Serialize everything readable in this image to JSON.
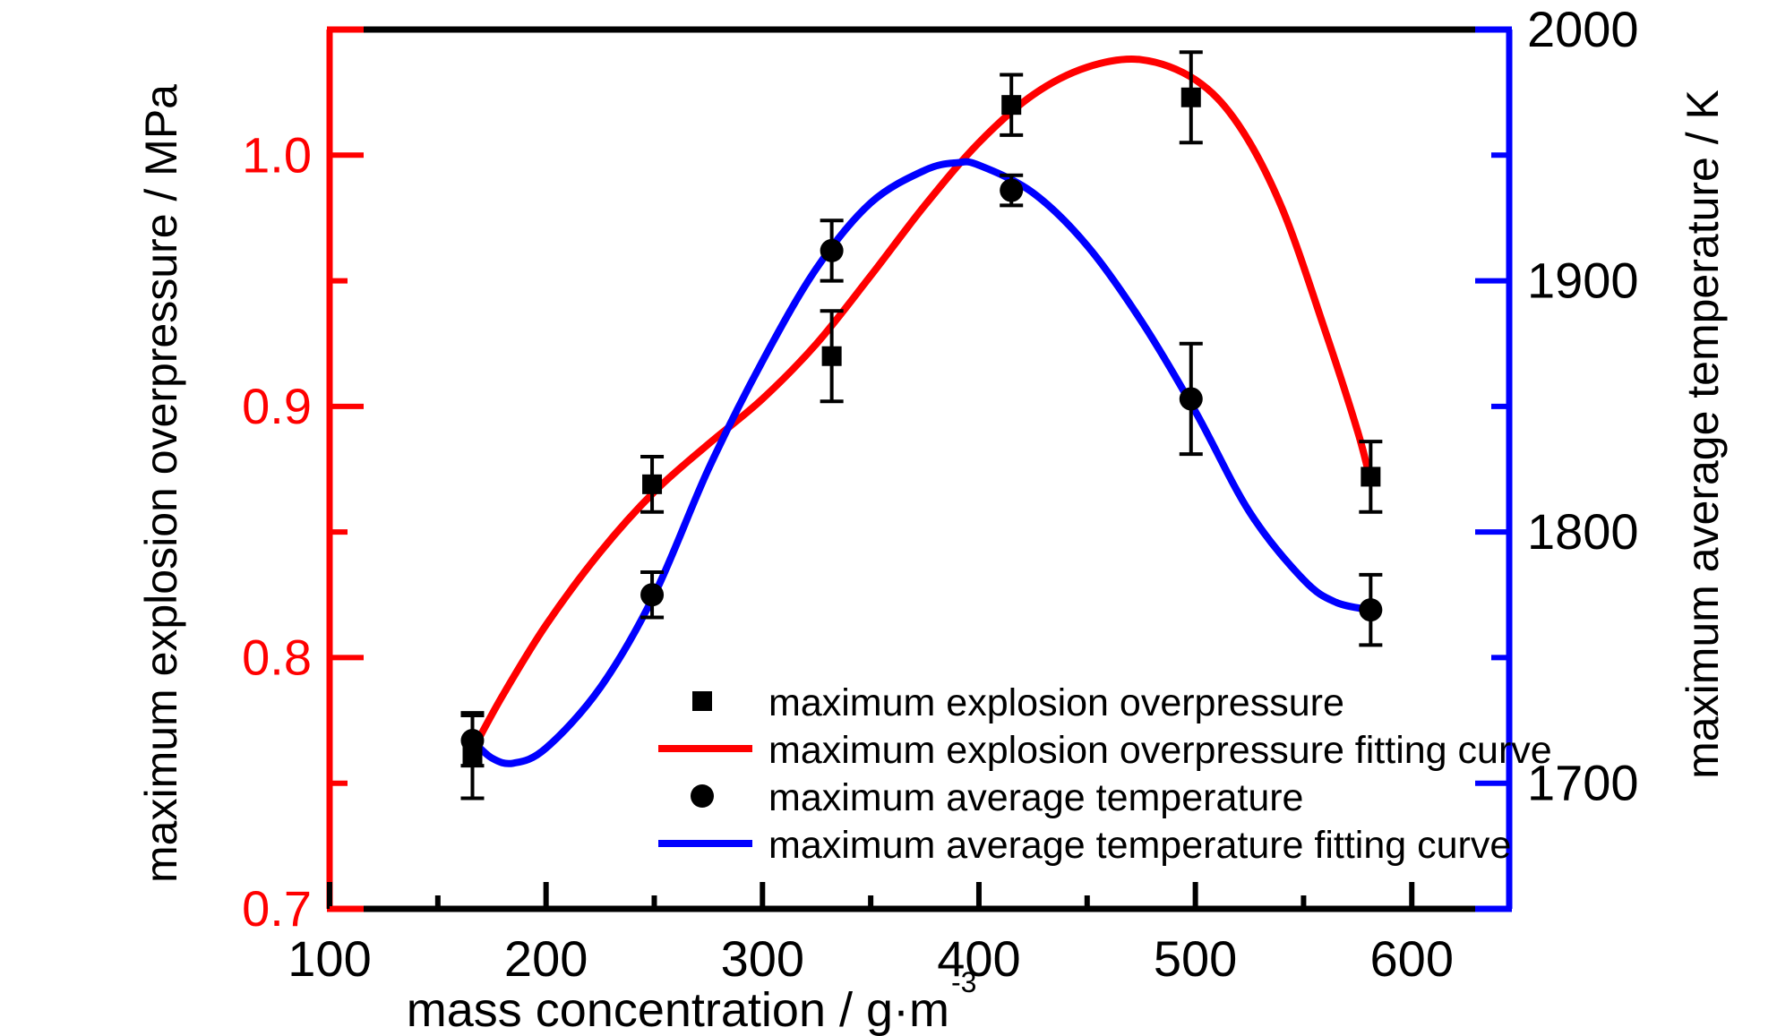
{
  "chart_data": {
    "type": "scatter",
    "xlabel": "mass concentration / g·m",
    "xlabel_superscript": "-3",
    "ylabel_left": "maximum explosion overpressure / MPa",
    "ylabel_right": "maximum average temperature / K",
    "xlim": [
      100,
      645
    ],
    "ylim_left": [
      0.7,
      1.05
    ],
    "ylim_right": [
      1650,
      2000
    ],
    "x_ticks": [
      "100",
      "200",
      "300",
      "400",
      "500",
      "600"
    ],
    "y_left_ticks": [
      "0.7",
      "0.8",
      "0.9",
      "1.0"
    ],
    "y_right_ticks": [
      "1700",
      "1800",
      "1900",
      "2000"
    ],
    "grid": false,
    "legend_position": "bottom-right",
    "colors": {
      "left_axis": "#ff0000",
      "right_axis": "#0000ff",
      "frame": "#000000",
      "points": "#000000"
    },
    "legend": [
      {
        "label": "maximum explosion overpressure",
        "symbol": "square"
      },
      {
        "label": "maximum explosion overpressure fitting curve",
        "symbol": "line-red"
      },
      {
        "label": "maximum average temperature",
        "symbol": "circle"
      },
      {
        "label": "maximum average temperature fitting curve",
        "symbol": "line-blue"
      }
    ],
    "series": [
      {
        "name": "maximum explosion overpressure",
        "axis": "left",
        "marker": "square",
        "x": [
          166,
          249,
          332,
          415,
          498,
          581
        ],
        "y": [
          0.761,
          0.869,
          0.92,
          1.02,
          1.023,
          0.872
        ],
        "err": [
          0.017,
          0.011,
          0.018,
          0.012,
          0.018,
          0.014
        ]
      },
      {
        "name": "maximum average temperature",
        "axis": "right",
        "marker": "circle",
        "x": [
          166,
          249,
          332,
          415,
          498,
          581
        ],
        "y": [
          1717,
          1775,
          1912,
          1936,
          1853,
          1769
        ],
        "err": [
          10,
          9,
          12,
          6,
          22,
          14
        ]
      },
      {
        "name": "maximum explosion overpressure fitting curve",
        "axis": "left",
        "line": true,
        "x": [
          166,
          180,
          200,
          225,
          250,
          275,
          300,
          325,
          350,
          375,
          400,
          425,
          450,
          475,
          500,
          520,
          540,
          560,
          575,
          581
        ],
        "y": [
          0.763,
          0.785,
          0.813,
          0.842,
          0.866,
          0.885,
          0.903,
          0.925,
          0.952,
          0.98,
          1.005,
          1.024,
          1.035,
          1.038,
          1.03,
          1.012,
          0.979,
          0.93,
          0.89,
          0.87
        ]
      },
      {
        "name": "maximum average temperature fitting curve",
        "axis": "right",
        "line": true,
        "x": [
          166,
          175,
          185,
          200,
          225,
          250,
          275,
          300,
          325,
          350,
          375,
          390,
          400,
          425,
          450,
          475,
          500,
          525,
          550,
          565,
          581
        ],
        "y": [
          1717,
          1710,
          1708,
          1714,
          1738,
          1775,
          1825,
          1868,
          1905,
          1931,
          1944,
          1947,
          1946,
          1935,
          1914,
          1884,
          1848,
          1808,
          1781,
          1772,
          1769
        ]
      }
    ]
  }
}
